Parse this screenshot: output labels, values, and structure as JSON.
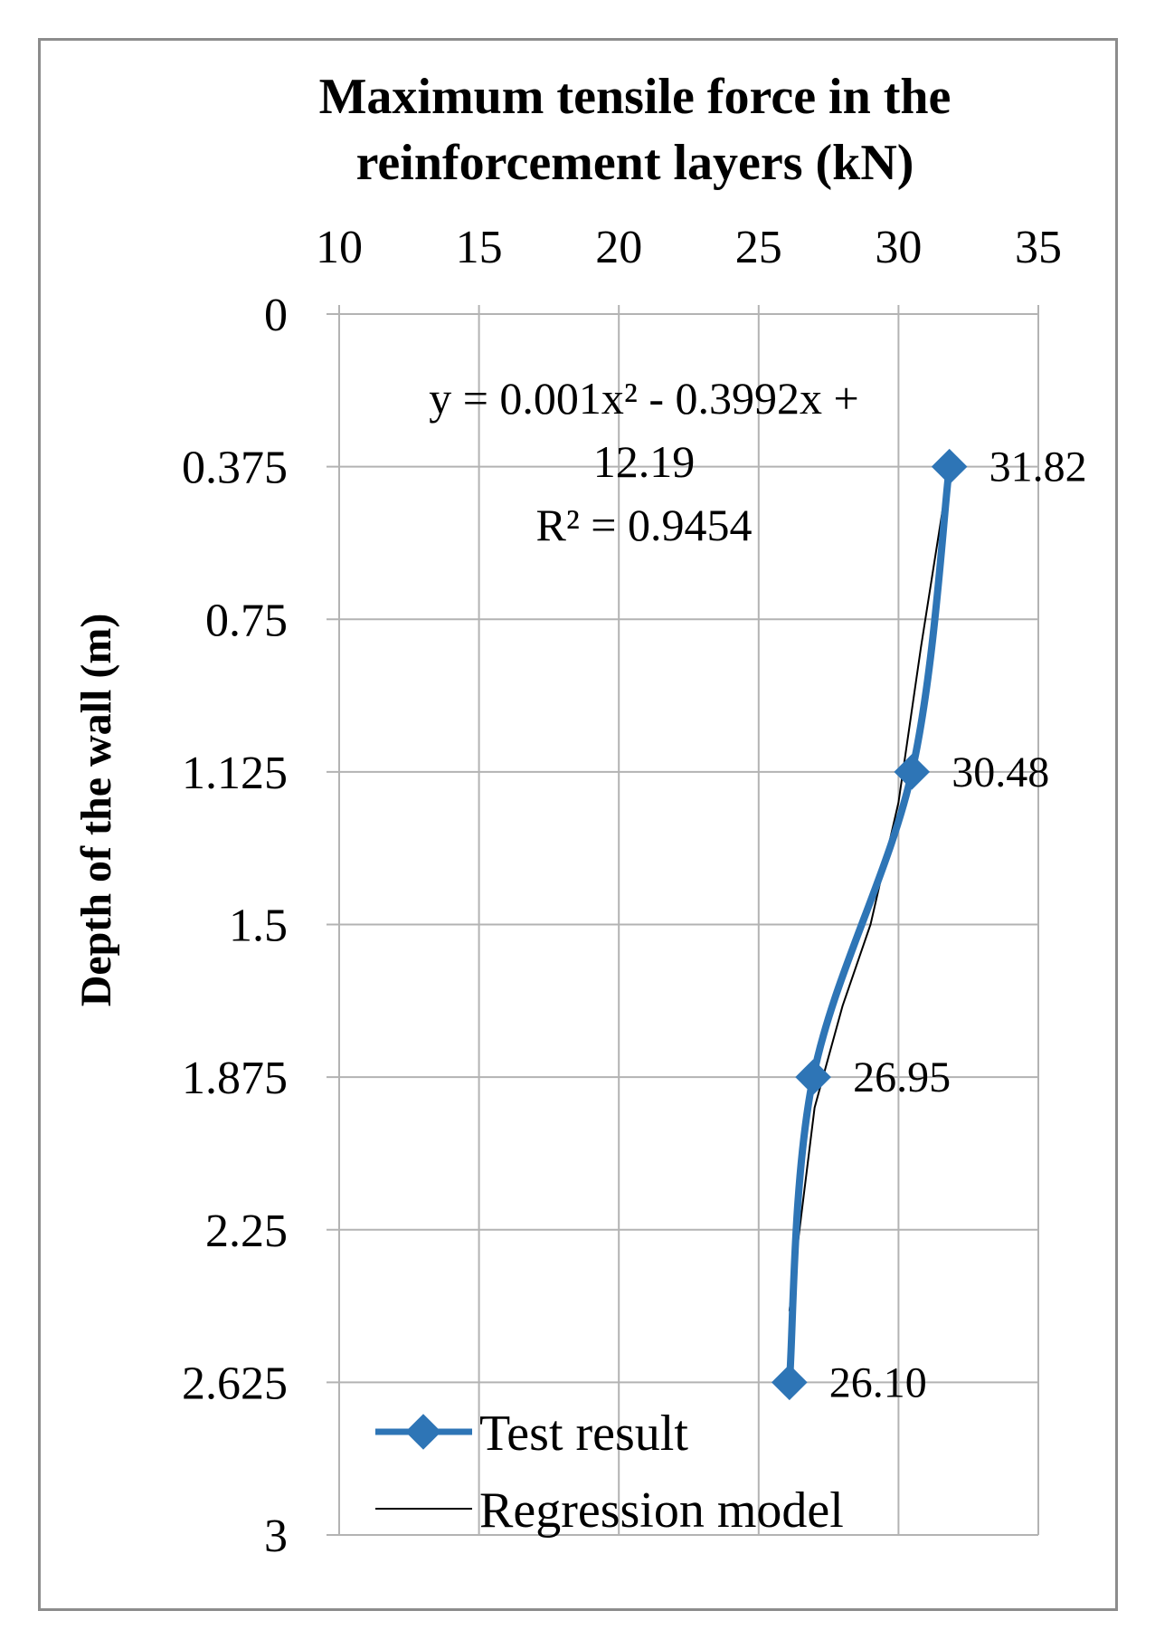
{
  "chart_data": {
    "type": "line",
    "title": "",
    "xlabel": "Maximum tensile force in the reinforcement  layers  (kN)",
    "xlabel_lines": [
      "Maximum tensile force in the",
      "reinforcement  layers  (kN)"
    ],
    "ylabel": "Depth of the wall (m)",
    "xlim": [
      10,
      35
    ],
    "ylim": [
      0,
      3
    ],
    "y_inverted": true,
    "x_axis_position": "top",
    "x_ticks": [
      "10",
      "15",
      "20",
      "25",
      "30",
      "35"
    ],
    "y_ticks": [
      "0",
      "0.375",
      "0.75",
      "1.125",
      "1.5",
      "1.875",
      "2.25",
      "2.625",
      "3"
    ],
    "grid": true,
    "legend_position": "bottom-left",
    "series": [
      {
        "name": "Test result",
        "color": "#2e75b6",
        "marker": "diamond",
        "x": [
          31.82,
          30.48,
          26.95,
          26.1
        ],
        "y": [
          0.375,
          1.125,
          1.875,
          2.625
        ],
        "labels": [
          "31.82",
          "30.48",
          "26.95",
          "26.10"
        ]
      },
      {
        "name": "Regression model",
        "color": "#000000",
        "marker": "none",
        "x": [
          31.82,
          30.8,
          30.0,
          29.0,
          28.0,
          27.0,
          26.1
        ],
        "y": [
          0.375,
          0.82,
          1.2,
          1.5,
          1.7,
          1.95,
          2.45
        ]
      }
    ],
    "annotations": {
      "equation_lines": [
        "y = 0.001x² - 0.3992x +",
        "12.19"
      ],
      "r_squared": "R² = 0.9454"
    }
  }
}
